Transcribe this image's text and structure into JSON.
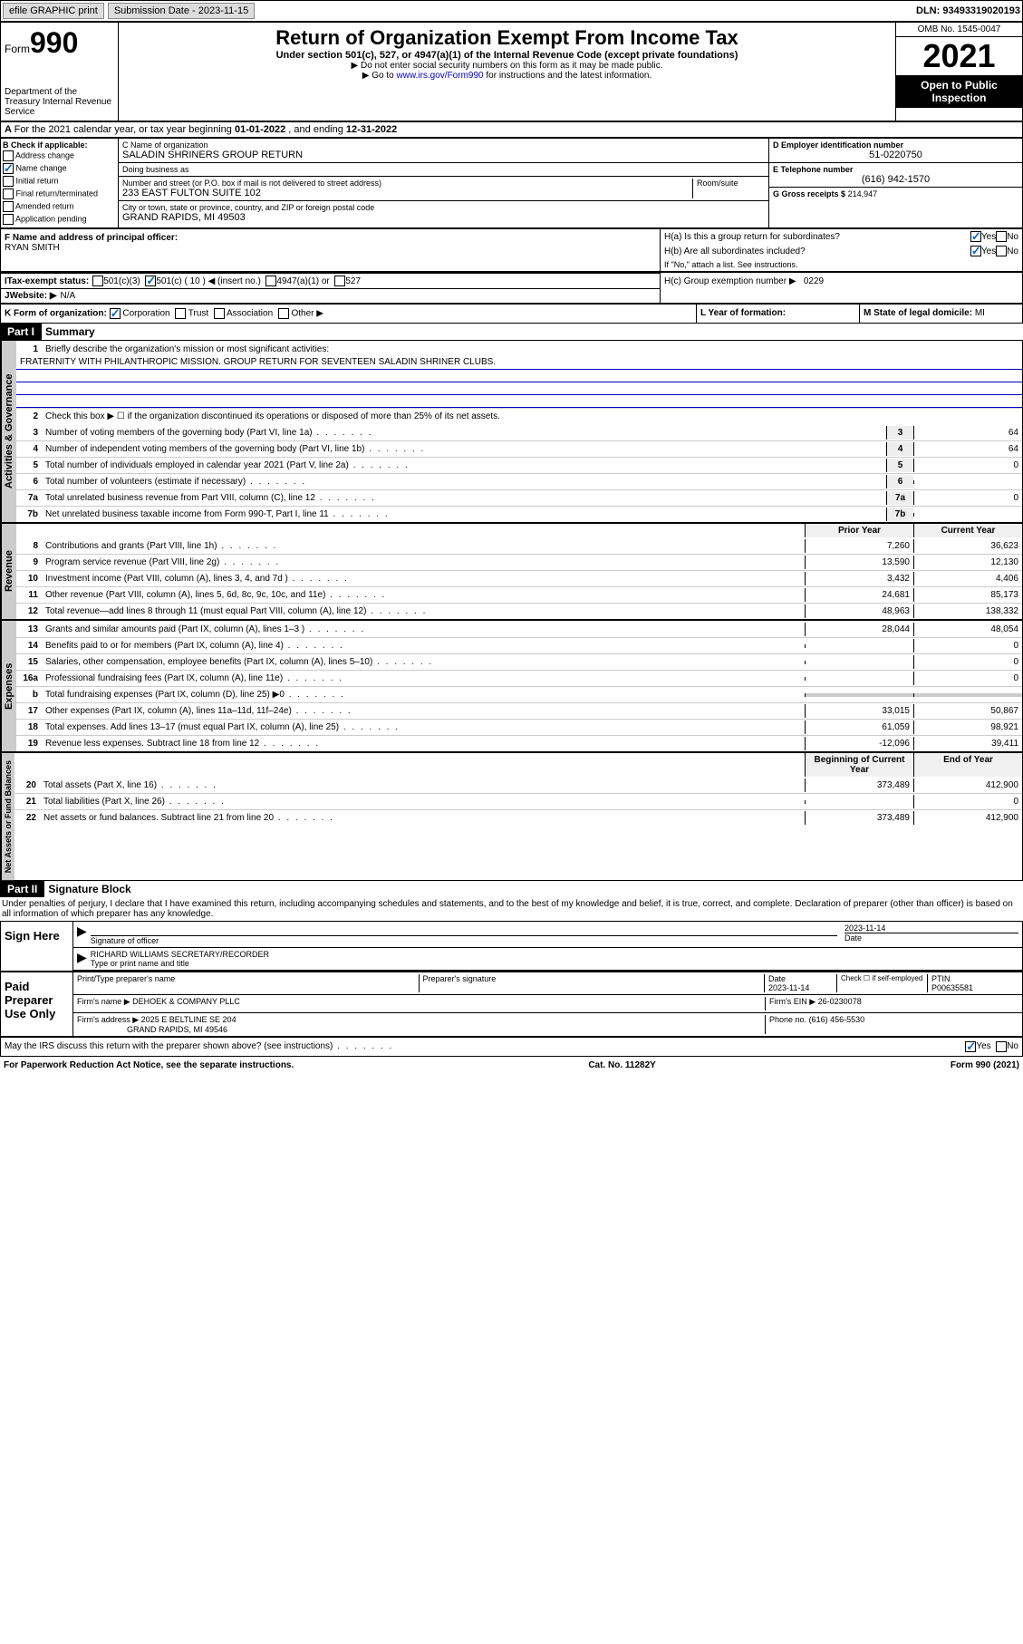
{
  "topbar": {
    "efile": "efile GRAPHIC print",
    "submission_label": "Submission Date - 2023-11-15",
    "dln": "DLN: 93493319020193"
  },
  "header": {
    "form_prefix": "Form",
    "form_num": "990",
    "dept": "Department of the Treasury\nInternal Revenue Service",
    "title": "Return of Organization Exempt From Income Tax",
    "subtitle": "Under section 501(c), 527, or 4947(a)(1) of the Internal Revenue Code (except private foundations)",
    "note1": "▶ Do not enter social security numbers on this form as it may be made public.",
    "note2_pre": "▶ Go to ",
    "note2_link": "www.irs.gov/Form990",
    "note2_post": " for instructions and the latest information.",
    "omb": "OMB No. 1545-0047",
    "year": "2021",
    "open": "Open to Public Inspection"
  },
  "line_a": {
    "text_pre": "For the 2021 calendar year, or tax year beginning ",
    "begin": "01-01-2022",
    "mid": " , and ending ",
    "end": "12-31-2022"
  },
  "section_b": {
    "label": "B Check if applicable:",
    "items": [
      "Address change",
      "Name change",
      "Initial return",
      "Final return/terminated",
      "Amended return",
      "Application pending"
    ],
    "checked": [
      false,
      true,
      false,
      false,
      false,
      false
    ]
  },
  "section_c": {
    "name_label": "C Name of organization",
    "name": "SALADIN SHRINERS GROUP RETURN",
    "dba_label": "Doing business as",
    "dba": "",
    "addr_label": "Number and street (or P.O. box if mail is not delivered to street address)",
    "room_label": "Room/suite",
    "addr": "233 EAST FULTON SUITE 102",
    "city_label": "City or town, state or province, country, and ZIP or foreign postal code",
    "city": "GRAND RAPIDS, MI  49503"
  },
  "section_d": {
    "label": "D Employer identification number",
    "val": "51-0220750"
  },
  "section_e": {
    "label": "E Telephone number",
    "val": "(616) 942-1570"
  },
  "section_g": {
    "label": "G Gross receipts $",
    "val": "214,947"
  },
  "section_f": {
    "label": "F Name and address of principal officer:",
    "name": "RYAN SMITH"
  },
  "section_h": {
    "ha": "H(a)  Is this a group return for subordinates?",
    "hb": "H(b)  Are all subordinates included?",
    "hb_note": "If \"No,\" attach a list. See instructions.",
    "hc": "H(c)  Group exemption number ▶",
    "hc_val": "0229",
    "yes": "Yes",
    "no": "No"
  },
  "section_i": {
    "label": "Tax-exempt status:",
    "opts": [
      "501(c)(3)",
      "501(c) ( 10 ) ◀ (insert no.)",
      "4947(a)(1) or",
      "527"
    ],
    "checked_idx": 1
  },
  "section_j": {
    "label": "Website: ▶",
    "val": "N/A"
  },
  "section_k": {
    "label": "K Form of organization:",
    "opts": [
      "Corporation",
      "Trust",
      "Association",
      "Other ▶"
    ],
    "checked_idx": 0
  },
  "section_l": {
    "label": "L Year of formation:",
    "val": ""
  },
  "section_m": {
    "label": "M State of legal domicile:",
    "val": "MI"
  },
  "part1": {
    "header": "Part I",
    "title": "Summary",
    "line1_label": "Briefly describe the organization's mission or most significant activities:",
    "line1_text": "FRATERNITY WITH PHILANTHROPIC MISSION. GROUP RETURN FOR SEVENTEEN SALADIN SHRINER CLUBS.",
    "line2": "Check this box ▶ ☐  if the organization discontinued its operations or disposed of more than 25% of its net assets.",
    "gov_lines": [
      {
        "n": "3",
        "t": "Number of voting members of the governing body (Part VI, line 1a)",
        "v": "64"
      },
      {
        "n": "4",
        "t": "Number of independent voting members of the governing body (Part VI, line 1b)",
        "v": "64"
      },
      {
        "n": "5",
        "t": "Total number of individuals employed in calendar year 2021 (Part V, line 2a)",
        "v": "0"
      },
      {
        "n": "6",
        "t": "Total number of volunteers (estimate if necessary)",
        "v": ""
      },
      {
        "n": "7a",
        "t": "Total unrelated business revenue from Part VIII, column (C), line 12",
        "v": "0"
      },
      {
        "n": "7b",
        "t": "Net unrelated business taxable income from Form 990-T, Part I, line 11",
        "v": ""
      }
    ],
    "col_prior": "Prior Year",
    "col_current": "Current Year",
    "rev_lines": [
      {
        "n": "8",
        "t": "Contributions and grants (Part VIII, line 1h)",
        "p": "7,260",
        "c": "36,623"
      },
      {
        "n": "9",
        "t": "Program service revenue (Part VIII, line 2g)",
        "p": "13,590",
        "c": "12,130"
      },
      {
        "n": "10",
        "t": "Investment income (Part VIII, column (A), lines 3, 4, and 7d )",
        "p": "3,432",
        "c": "4,406"
      },
      {
        "n": "11",
        "t": "Other revenue (Part VIII, column (A), lines 5, 6d, 8c, 9c, 10c, and 11e)",
        "p": "24,681",
        "c": "85,173"
      },
      {
        "n": "12",
        "t": "Total revenue—add lines 8 through 11 (must equal Part VIII, column (A), line 12)",
        "p": "48,963",
        "c": "138,332"
      }
    ],
    "exp_lines": [
      {
        "n": "13",
        "t": "Grants and similar amounts paid (Part IX, column (A), lines 1–3 )",
        "p": "28,044",
        "c": "48,054"
      },
      {
        "n": "14",
        "t": "Benefits paid to or for members (Part IX, column (A), line 4)",
        "p": "",
        "c": "0"
      },
      {
        "n": "15",
        "t": "Salaries, other compensation, employee benefits (Part IX, column (A), lines 5–10)",
        "p": "",
        "c": "0"
      },
      {
        "n": "16a",
        "t": "Professional fundraising fees (Part IX, column (A), line 11e)",
        "p": "",
        "c": "0"
      },
      {
        "n": "b",
        "t": "Total fundraising expenses (Part IX, column (D), line 25) ▶0",
        "p": "gray",
        "c": "gray"
      },
      {
        "n": "17",
        "t": "Other expenses (Part IX, column (A), lines 11a–11d, 11f–24e)",
        "p": "33,015",
        "c": "50,867"
      },
      {
        "n": "18",
        "t": "Total expenses. Add lines 13–17 (must equal Part IX, column (A), line 25)",
        "p": "61,059",
        "c": "98,921"
      },
      {
        "n": "19",
        "t": "Revenue less expenses. Subtract line 18 from line 12",
        "p": "-12,096",
        "c": "39,411"
      }
    ],
    "col_begin": "Beginning of Current Year",
    "col_end": "End of Year",
    "net_lines": [
      {
        "n": "20",
        "t": "Total assets (Part X, line 16)",
        "p": "373,489",
        "c": "412,900"
      },
      {
        "n": "21",
        "t": "Total liabilities (Part X, line 26)",
        "p": "",
        "c": "0"
      },
      {
        "n": "22",
        "t": "Net assets or fund balances. Subtract line 21 from line 20",
        "p": "373,489",
        "c": "412,900"
      }
    ],
    "vlabels": {
      "gov": "Activities & Governance",
      "rev": "Revenue",
      "exp": "Expenses",
      "net": "Net Assets or Fund Balances"
    }
  },
  "part2": {
    "header": "Part II",
    "title": "Signature Block",
    "decl": "Under penalties of perjury, I declare that I have examined this return, including accompanying schedules and statements, and to the best of my knowledge and belief, it is true, correct, and complete. Declaration of preparer (other than officer) is based on all information of which preparer has any knowledge.",
    "sign_here": "Sign Here",
    "sig_officer": "Signature of officer",
    "sig_date": "2023-11-14",
    "date_label": "Date",
    "officer_name": "RICHARD WILLIAMS  SECRETARY/RECORDER",
    "officer_label": "Type or print name and title",
    "paid": "Paid Preparer Use Only",
    "prep_name_label": "Print/Type preparer's name",
    "prep_sig_label": "Preparer's signature",
    "prep_date": "2023-11-14",
    "check_self": "Check ☐ if self-employed",
    "ptin_label": "PTIN",
    "ptin": "P00635581",
    "firm_name_label": "Firm's name    ▶",
    "firm_name": "DEHOEK & COMPANY PLLC",
    "firm_ein_label": "Firm's EIN ▶",
    "firm_ein": "26-0230078",
    "firm_addr_label": "Firm's address ▶",
    "firm_addr1": "2025 E BELTLINE SE 204",
    "firm_addr2": "GRAND RAPIDS, MI  49546",
    "phone_label": "Phone no.",
    "phone": "(616) 456-5530",
    "may_irs": "May the IRS discuss this return with the preparer shown above? (see instructions)",
    "yes": "Yes",
    "no": "No"
  },
  "footer": {
    "left": "For Paperwork Reduction Act Notice, see the separate instructions.",
    "mid": "Cat. No. 11282Y",
    "right": "Form 990 (2021)"
  }
}
